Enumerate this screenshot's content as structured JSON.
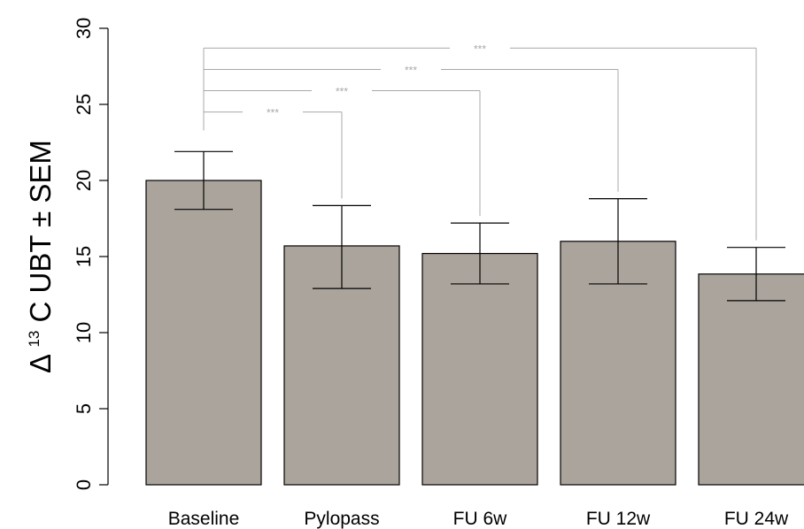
{
  "chart_data": {
    "type": "bar",
    "categories": [
      "Baseline",
      "Pylopass",
      "FU 6w",
      "FU 12w",
      "FU 24w"
    ],
    "values": [
      20.0,
      15.7,
      15.2,
      16.0,
      13.85
    ],
    "error_low": [
      18.1,
      12.9,
      13.2,
      13.2,
      12.1
    ],
    "error_high": [
      21.9,
      18.35,
      17.2,
      18.8,
      15.6
    ],
    "ylim": [
      0,
      30
    ],
    "yticks": [
      "0",
      "5",
      "10",
      "15",
      "20",
      "25",
      "30"
    ],
    "ylabel": {
      "prefix": "Δ",
      "superscript": "13",
      "suffix": "C UBT ± SEM"
    },
    "xlabel": "",
    "title": "",
    "grid": false,
    "colors": {
      "bar_fill": "#aba49c",
      "bar_stroke": "#000000",
      "significance_line": "#a8a8a8"
    },
    "significance": [
      {
        "from": "Baseline",
        "to": "Pylopass",
        "label": "***",
        "y": 24.5
      },
      {
        "from": "Baseline",
        "to": "FU 6w",
        "label": "***",
        "y": 25.9
      },
      {
        "from": "Baseline",
        "to": "FU 12w",
        "label": "***",
        "y": 27.3
      },
      {
        "from": "Baseline",
        "to": "FU 24w",
        "label": "***",
        "y": 28.7
      }
    ]
  }
}
